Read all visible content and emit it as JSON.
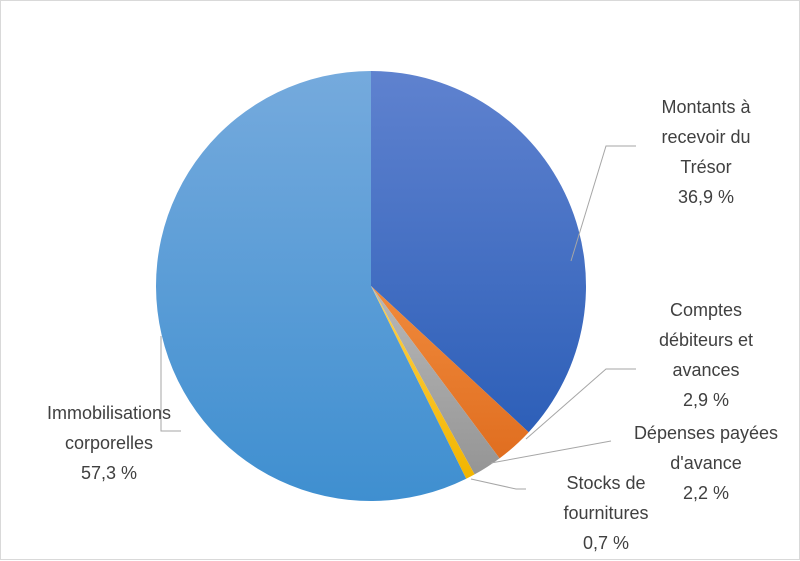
{
  "chart_data": {
    "type": "pie",
    "title": "",
    "start_angle_deg": 0,
    "direction": "clockwise",
    "legend": "none",
    "slices": [
      {
        "name": "Montants à recevoir du Trésor",
        "label_lines": [
          "Montants à",
          "recevoir du",
          "Trésor"
        ],
        "value": 36.9,
        "value_label": "36,9 %",
        "color": "#3f6fcf"
      },
      {
        "name": "Comptes débiteurs et avances",
        "label_lines": [
          "Comptes",
          "débiteurs et",
          "avances"
        ],
        "value": 2.9,
        "value_label": "2,9 %",
        "color": "#ed7d31"
      },
      {
        "name": "Dépenses payées d'avance",
        "label_lines": [
          "Dépenses payées",
          "d'avance"
        ],
        "value": 2.2,
        "value_label": "2,2 %",
        "color": "#a5a5a5"
      },
      {
        "name": "Stocks de fournitures",
        "label_lines": [
          "Stocks de",
          "fournitures"
        ],
        "value": 0.7,
        "value_label": "0,7 %",
        "color": "#ffc000"
      },
      {
        "name": "Immobilisations corporelles",
        "label_lines": [
          "Immobilisations",
          "corporelles"
        ],
        "value": 57.3,
        "value_label": "57,3 %",
        "color": "#5b9bd5"
      }
    ]
  }
}
